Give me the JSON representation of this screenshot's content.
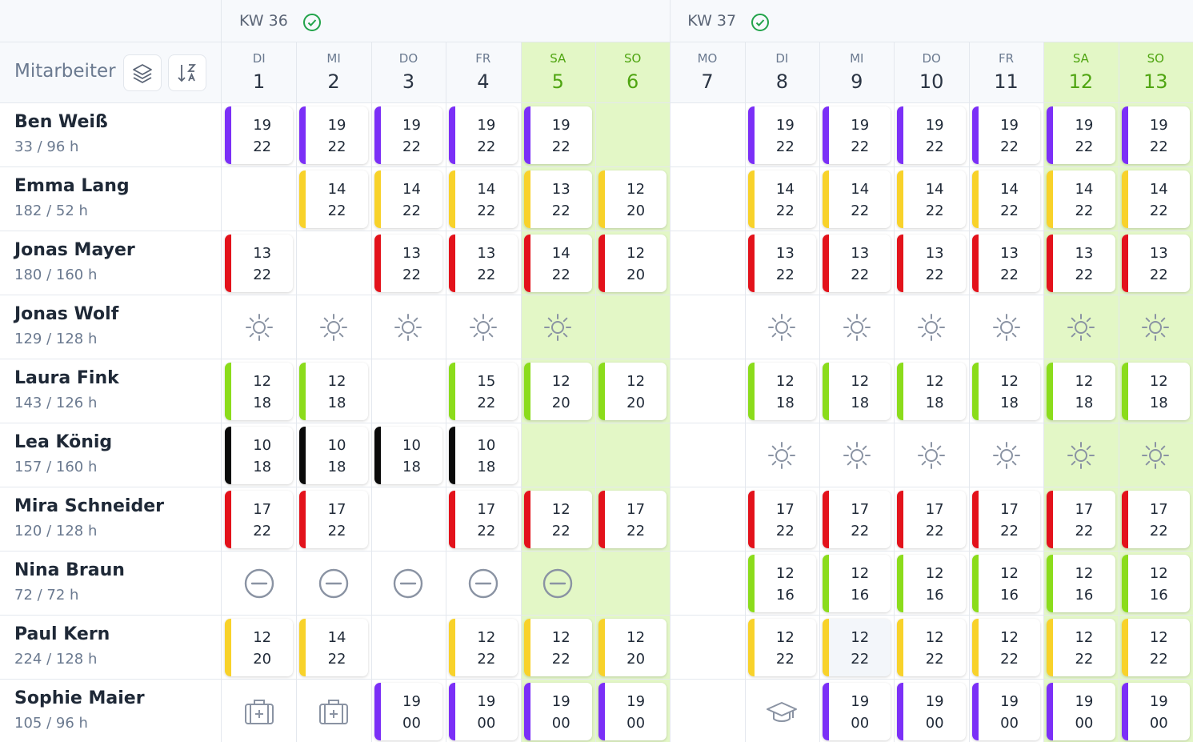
{
  "header": {
    "employee_label": "Mitarbeiter"
  },
  "weeks": [
    {
      "label": "KW 36",
      "span": 6
    },
    {
      "label": "KW 37",
      "span": 7
    }
  ],
  "days": [
    {
      "dow": "DI",
      "day": "1",
      "weekend": false
    },
    {
      "dow": "MI",
      "day": "2",
      "weekend": false
    },
    {
      "dow": "DO",
      "day": "3",
      "weekend": false
    },
    {
      "dow": "FR",
      "day": "4",
      "weekend": false
    },
    {
      "dow": "SA",
      "day": "5",
      "weekend": true
    },
    {
      "dow": "SO",
      "day": "6",
      "weekend": true
    },
    {
      "dow": "MO",
      "day": "7",
      "weekend": false
    },
    {
      "dow": "DI",
      "day": "8",
      "weekend": false
    },
    {
      "dow": "MI",
      "day": "9",
      "weekend": false
    },
    {
      "dow": "DO",
      "day": "10",
      "weekend": false
    },
    {
      "dow": "FR",
      "day": "11",
      "weekend": false
    },
    {
      "dow": "SA",
      "day": "12",
      "weekend": true
    },
    {
      "dow": "SO",
      "day": "13",
      "weekend": true
    }
  ],
  "employees": [
    {
      "name": "Ben Weiß",
      "hours": "33 / 96 h",
      "cells": [
        {
          "s": "19",
          "e": "22",
          "c": "#7b2ff7"
        },
        {
          "s": "19",
          "e": "22",
          "c": "#7b2ff7"
        },
        {
          "s": "19",
          "e": "22",
          "c": "#7b2ff7"
        },
        {
          "s": "19",
          "e": "22",
          "c": "#7b2ff7"
        },
        {
          "s": "19",
          "e": "22",
          "c": "#7b2ff7"
        },
        null,
        null,
        {
          "s": "19",
          "e": "22",
          "c": "#7b2ff7"
        },
        {
          "s": "19",
          "e": "22",
          "c": "#7b2ff7"
        },
        {
          "s": "19",
          "e": "22",
          "c": "#7b2ff7"
        },
        {
          "s": "19",
          "e": "22",
          "c": "#7b2ff7"
        },
        {
          "s": "19",
          "e": "22",
          "c": "#7b2ff7"
        },
        {
          "s": "19",
          "e": "22",
          "c": "#7b2ff7"
        }
      ]
    },
    {
      "name": "Emma Lang",
      "hours": "182 / 52 h",
      "cells": [
        null,
        {
          "s": "14",
          "e": "22",
          "c": "#f8d22a"
        },
        {
          "s": "14",
          "e": "22",
          "c": "#f8d22a"
        },
        {
          "s": "14",
          "e": "22",
          "c": "#f8d22a"
        },
        {
          "s": "13",
          "e": "22",
          "c": "#f8d22a"
        },
        {
          "s": "12",
          "e": "20",
          "c": "#f8d22a"
        },
        null,
        {
          "s": "14",
          "e": "22",
          "c": "#f8d22a"
        },
        {
          "s": "14",
          "e": "22",
          "c": "#f8d22a"
        },
        {
          "s": "14",
          "e": "22",
          "c": "#f8d22a"
        },
        {
          "s": "14",
          "e": "22",
          "c": "#f8d22a"
        },
        {
          "s": "14",
          "e": "22",
          "c": "#f8d22a"
        },
        {
          "s": "14",
          "e": "22",
          "c": "#f8d22a"
        }
      ]
    },
    {
      "name": "Jonas Mayer",
      "hours": "180 / 160 h",
      "cells": [
        {
          "s": "13",
          "e": "22",
          "c": "#e3121b"
        },
        null,
        {
          "s": "13",
          "e": "22",
          "c": "#e3121b"
        },
        {
          "s": "13",
          "e": "22",
          "c": "#e3121b"
        },
        {
          "s": "14",
          "e": "22",
          "c": "#e3121b"
        },
        {
          "s": "12",
          "e": "20",
          "c": "#e3121b"
        },
        null,
        {
          "s": "13",
          "e": "22",
          "c": "#e3121b"
        },
        {
          "s": "13",
          "e": "22",
          "c": "#e3121b"
        },
        {
          "s": "13",
          "e": "22",
          "c": "#e3121b"
        },
        {
          "s": "13",
          "e": "22",
          "c": "#e3121b"
        },
        {
          "s": "13",
          "e": "22",
          "c": "#e3121b"
        },
        {
          "s": "13",
          "e": "22",
          "c": "#e3121b"
        }
      ]
    },
    {
      "name": "Jonas Wolf",
      "hours": "129 / 128 h",
      "cells": [
        {
          "icon": "sun"
        },
        {
          "icon": "sun"
        },
        {
          "icon": "sun"
        },
        {
          "icon": "sun"
        },
        {
          "icon": "sun"
        },
        null,
        null,
        {
          "icon": "sun"
        },
        {
          "icon": "sun"
        },
        {
          "icon": "sun"
        },
        {
          "icon": "sun"
        },
        {
          "icon": "sun"
        },
        {
          "icon": "sun"
        }
      ]
    },
    {
      "name": "Laura Fink",
      "hours": "143 / 126 h",
      "cells": [
        {
          "s": "12",
          "e": "18",
          "c": "#8bdc1b"
        },
        {
          "s": "12",
          "e": "18",
          "c": "#8bdc1b"
        },
        null,
        {
          "s": "15",
          "e": "22",
          "c": "#8bdc1b"
        },
        {
          "s": "12",
          "e": "20",
          "c": "#8bdc1b"
        },
        {
          "s": "12",
          "e": "20",
          "c": "#8bdc1b"
        },
        null,
        {
          "s": "12",
          "e": "18",
          "c": "#8bdc1b"
        },
        {
          "s": "12",
          "e": "18",
          "c": "#8bdc1b"
        },
        {
          "s": "12",
          "e": "18",
          "c": "#8bdc1b"
        },
        {
          "s": "12",
          "e": "18",
          "c": "#8bdc1b"
        },
        {
          "s": "12",
          "e": "18",
          "c": "#8bdc1b"
        },
        {
          "s": "12",
          "e": "18",
          "c": "#8bdc1b"
        }
      ]
    },
    {
      "name": "Lea König",
      "hours": "157 / 160 h",
      "cells": [
        {
          "s": "10",
          "e": "18",
          "c": "#0a0a0a"
        },
        {
          "s": "10",
          "e": "18",
          "c": "#0a0a0a"
        },
        {
          "s": "10",
          "e": "18",
          "c": "#0a0a0a"
        },
        {
          "s": "10",
          "e": "18",
          "c": "#0a0a0a"
        },
        null,
        null,
        null,
        {
          "icon": "sun"
        },
        {
          "icon": "sun"
        },
        {
          "icon": "sun"
        },
        {
          "icon": "sun"
        },
        {
          "icon": "sun"
        },
        {
          "icon": "sun"
        }
      ]
    },
    {
      "name": "Mira Schneider",
      "hours": "120 / 128 h",
      "cells": [
        {
          "s": "17",
          "e": "22",
          "c": "#e3121b"
        },
        {
          "s": "17",
          "e": "22",
          "c": "#e3121b"
        },
        null,
        {
          "s": "17",
          "e": "22",
          "c": "#e3121b"
        },
        {
          "s": "12",
          "e": "22",
          "c": "#e3121b"
        },
        {
          "s": "17",
          "e": "22",
          "c": "#e3121b"
        },
        null,
        {
          "s": "17",
          "e": "22",
          "c": "#e3121b"
        },
        {
          "s": "17",
          "e": "22",
          "c": "#e3121b"
        },
        {
          "s": "17",
          "e": "22",
          "c": "#e3121b"
        },
        {
          "s": "17",
          "e": "22",
          "c": "#e3121b"
        },
        {
          "s": "17",
          "e": "22",
          "c": "#e3121b"
        },
        {
          "s": "17",
          "e": "22",
          "c": "#e3121b"
        }
      ]
    },
    {
      "name": "Nina Braun",
      "hours": "72 / 72 h",
      "cells": [
        {
          "icon": "minus"
        },
        {
          "icon": "minus"
        },
        {
          "icon": "minus"
        },
        {
          "icon": "minus"
        },
        {
          "icon": "minus"
        },
        null,
        null,
        {
          "s": "12",
          "e": "16",
          "c": "#8bdc1b"
        },
        {
          "s": "12",
          "e": "16",
          "c": "#8bdc1b"
        },
        {
          "s": "12",
          "e": "16",
          "c": "#8bdc1b"
        },
        {
          "s": "12",
          "e": "16",
          "c": "#8bdc1b"
        },
        {
          "s": "12",
          "e": "16",
          "c": "#8bdc1b"
        },
        {
          "s": "12",
          "e": "16",
          "c": "#8bdc1b"
        }
      ]
    },
    {
      "name": "Paul Kern",
      "hours": "224 / 128 h",
      "cells": [
        {
          "s": "12",
          "e": "20",
          "c": "#f8d22a"
        },
        {
          "s": "14",
          "e": "22",
          "c": "#f8d22a"
        },
        null,
        {
          "s": "12",
          "e": "22",
          "c": "#f8d22a"
        },
        {
          "s": "12",
          "e": "22",
          "c": "#f8d22a"
        },
        {
          "s": "12",
          "e": "20",
          "c": "#f8d22a"
        },
        null,
        {
          "s": "12",
          "e": "22",
          "c": "#f8d22a"
        },
        {
          "s": "12",
          "e": "22",
          "c": "#f8d22a",
          "hover": true
        },
        {
          "s": "12",
          "e": "22",
          "c": "#f8d22a"
        },
        {
          "s": "12",
          "e": "22",
          "c": "#f8d22a"
        },
        {
          "s": "12",
          "e": "22",
          "c": "#f8d22a"
        },
        {
          "s": "12",
          "e": "22",
          "c": "#f8d22a"
        }
      ]
    },
    {
      "name": "Sophie Maier",
      "hours": "105 / 96 h",
      "cells": [
        {
          "icon": "medkit"
        },
        {
          "icon": "medkit"
        },
        {
          "s": "19",
          "e": "00",
          "c": "#7b2ff7"
        },
        {
          "s": "19",
          "e": "00",
          "c": "#7b2ff7"
        },
        {
          "s": "19",
          "e": "00",
          "c": "#7b2ff7"
        },
        {
          "s": "19",
          "e": "00",
          "c": "#7b2ff7"
        },
        null,
        {
          "icon": "cap"
        },
        {
          "s": "19",
          "e": "00",
          "c": "#7b2ff7"
        },
        {
          "s": "19",
          "e": "00",
          "c": "#7b2ff7"
        },
        {
          "s": "19",
          "e": "00",
          "c": "#7b2ff7"
        },
        {
          "s": "19",
          "e": "00",
          "c": "#7b2ff7"
        },
        {
          "s": "19",
          "e": "00",
          "c": "#7b2ff7"
        }
      ]
    }
  ]
}
